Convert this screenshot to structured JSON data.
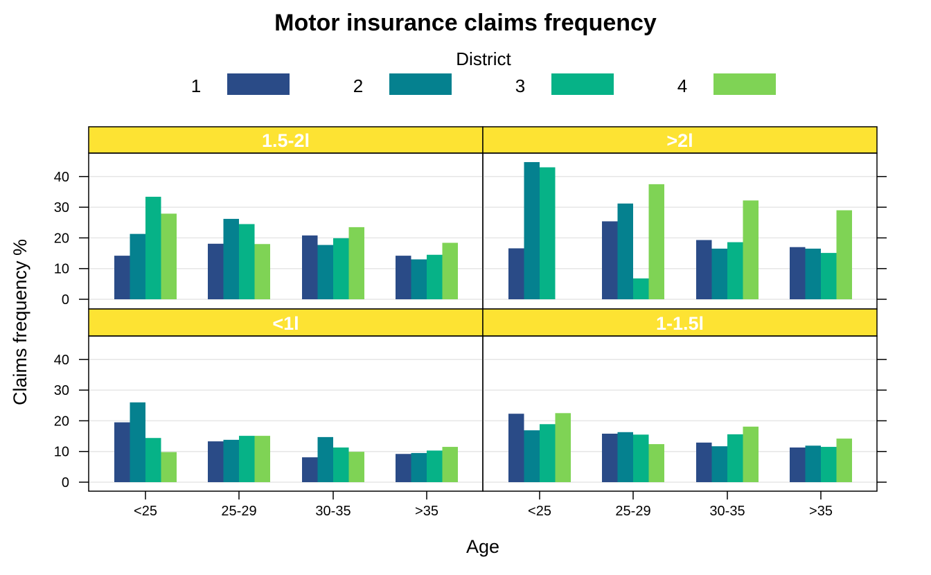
{
  "chart_data": {
    "type": "bar",
    "title": "Motor insurance claims frequency",
    "xlabel": "Age",
    "ylabel": "Claims frequency %",
    "categories": [
      "<25",
      "25-29",
      "30-35",
      ">35"
    ],
    "ylim": [
      0,
      45
    ],
    "yticks": [
      "0",
      "10",
      "20",
      "30",
      "40"
    ],
    "grid": true,
    "legend": {
      "title": "District",
      "position": "top",
      "entries": [
        "1",
        "2",
        "3",
        "4"
      ],
      "colors": [
        "#2A4B87",
        "#05818F",
        "#06B287",
        "#7FD355"
      ]
    },
    "strip_color": "#FDE333",
    "panels": [
      {
        "name": "1.5-2l",
        "series": [
          {
            "name": "1",
            "values": [
              14.2,
              18.1,
              20.8,
              14.2
            ]
          },
          {
            "name": "2",
            "values": [
              21.3,
              26.2,
              17.7,
              13
            ]
          },
          {
            "name": "3",
            "values": [
              33.4,
              24.5,
              19.9,
              14.5
            ]
          },
          {
            "name": "4",
            "values": [
              27.9,
              18,
              23.5,
              18.4
            ]
          }
        ]
      },
      {
        "name": ">2l",
        "series": [
          {
            "name": "1",
            "values": [
              16.6,
              25.4,
              19.3,
              17
            ]
          },
          {
            "name": "2",
            "values": [
              44.7,
              31.2,
              16.5,
              16.5
            ]
          },
          {
            "name": "3",
            "values": [
              43,
              6.8,
              18.6,
              15.1
            ]
          },
          {
            "name": "4",
            "values": [
              null,
              37.5,
              32.2,
              29
            ]
          }
        ]
      },
      {
        "name": "<1l",
        "series": [
          {
            "name": "1",
            "values": [
              19.5,
              13.3,
              8.1,
              9.2
            ]
          },
          {
            "name": "2",
            "values": [
              26,
              13.8,
              14.7,
              9.5
            ]
          },
          {
            "name": "3",
            "values": [
              14.4,
              15.1,
              11.3,
              10.3
            ]
          },
          {
            "name": "4",
            "values": [
              9.8,
              15.1,
              9.9,
              11.5
            ]
          }
        ]
      },
      {
        "name": "1-1.5l",
        "series": [
          {
            "name": "1",
            "values": [
              22.3,
              15.8,
              12.9,
              11.3
            ]
          },
          {
            "name": "2",
            "values": [
              16.9,
              16.3,
              11.7,
              11.9
            ]
          },
          {
            "name": "3",
            "values": [
              18.9,
              15.5,
              15.6,
              11.5
            ]
          },
          {
            "name": "4",
            "values": [
              22.5,
              12.4,
              18.1,
              14.2
            ]
          }
        ]
      }
    ]
  }
}
